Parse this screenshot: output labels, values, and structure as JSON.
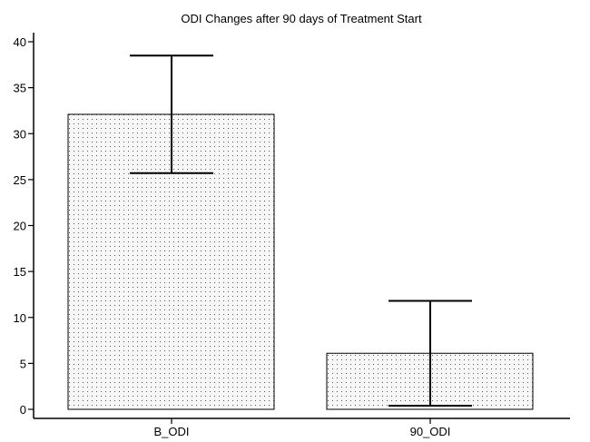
{
  "chart_data": {
    "type": "bar",
    "title": "ODI Changes after 90 days of Treatment Start",
    "categories": [
      "B_ODI",
      "90_ODI"
    ],
    "values": [
      32.1,
      6.1
    ],
    "error_high": [
      38.5,
      11.8
    ],
    "error_low": [
      25.7,
      0.4
    ],
    "xlabel": "",
    "ylabel": "",
    "ylim": [
      0,
      40
    ],
    "yticks": [
      0,
      5,
      10,
      15,
      20,
      25,
      30,
      35,
      40
    ],
    "grid": false,
    "bar_fill": "#f2f2f2",
    "bar_pattern": "dotted",
    "stroke_color": "#000000"
  }
}
